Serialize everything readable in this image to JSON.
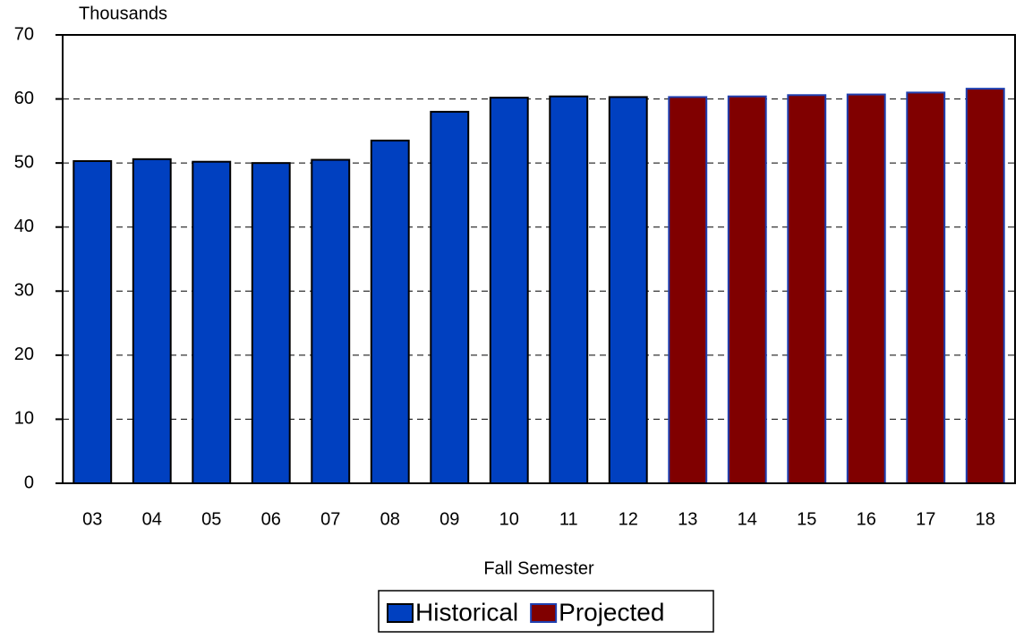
{
  "chart_data": {
    "type": "bar",
    "y_label": "Thousands",
    "x_label": "Fall Semester",
    "categories": [
      "03",
      "04",
      "05",
      "06",
      "07",
      "08",
      "09",
      "10",
      "11",
      "12",
      "13",
      "14",
      "15",
      "16",
      "17",
      "18"
    ],
    "series": [
      {
        "name": "Historical",
        "color": "#0040c0",
        "edgecolor": "#000000",
        "values": [
          50.3,
          50.6,
          50.2,
          50.0,
          50.5,
          53.5,
          58.0,
          60.2,
          60.4,
          60.3,
          null,
          null,
          null,
          null,
          null,
          null
        ]
      },
      {
        "name": "Projected",
        "color": "#800000",
        "edgecolor": "#1f3fb0",
        "values": [
          null,
          null,
          null,
          null,
          null,
          null,
          null,
          null,
          null,
          null,
          60.3,
          60.4,
          60.6,
          60.7,
          61.0,
          61.6
        ]
      }
    ],
    "ylim": [
      0,
      70
    ],
    "yticks": [
      0,
      10,
      20,
      30,
      40,
      50,
      60,
      70
    ],
    "grid": true,
    "legend": "bottom"
  }
}
